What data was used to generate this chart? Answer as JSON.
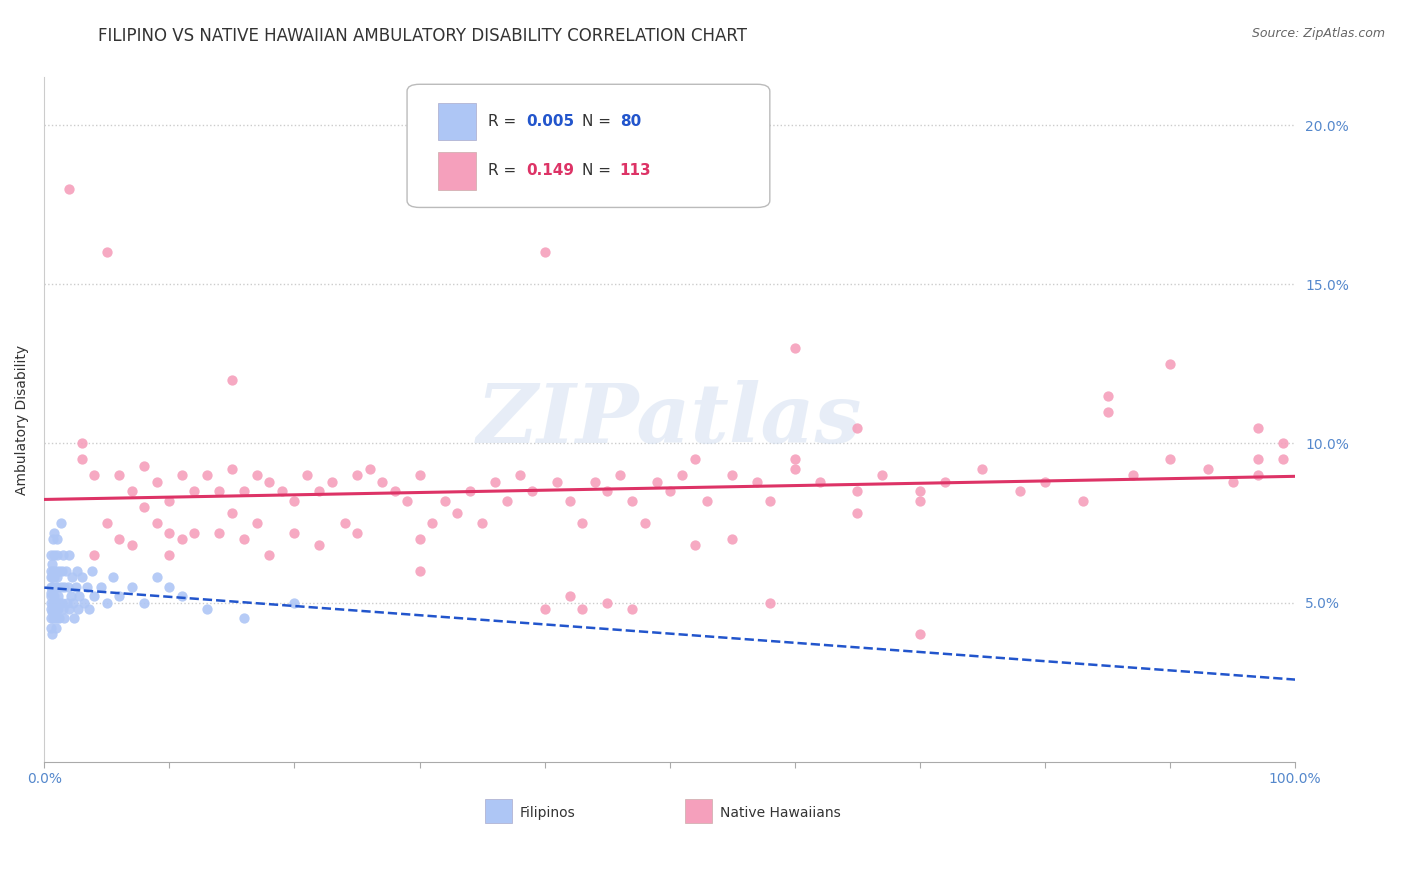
{
  "title": "FILIPINO VS NATIVE HAWAIIAN AMBULATORY DISABILITY CORRELATION CHART",
  "source": "Source: ZipAtlas.com",
  "ylabel": "Ambulatory Disability",
  "watermark": "ZIPatlas",
  "filipino_R": 0.005,
  "filipino_N": 80,
  "hawaiian_R": 0.149,
  "hawaiian_N": 113,
  "filipino_color": "#aec6f5",
  "hawaiian_color": "#f5a0bc",
  "filipino_line_color": "#2255cc",
  "hawaiian_line_color": "#dd3366",
  "background_color": "#ffffff",
  "grid_color": "#cccccc",
  "xlim": [
    0,
    1.0
  ],
  "ylim": [
    0,
    0.215
  ],
  "x_ticks": [
    0.0,
    1.0
  ],
  "x_tick_labels": [
    "0.0%",
    "100.0%"
  ],
  "y_ticks": [
    0.05,
    0.1,
    0.15,
    0.2
  ],
  "y_tick_labels": [
    "5.0%",
    "10.0%",
    "15.0%",
    "20.0%"
  ],
  "title_fontsize": 12,
  "axis_fontsize": 10,
  "tick_fontsize": 10,
  "legend_fontsize": 12,
  "filipino_points_x": [
    0.005,
    0.005,
    0.005,
    0.005,
    0.005,
    0.005,
    0.005,
    0.005,
    0.005,
    0.005,
    0.006,
    0.006,
    0.006,
    0.006,
    0.006,
    0.007,
    0.007,
    0.007,
    0.007,
    0.007,
    0.007,
    0.008,
    0.008,
    0.008,
    0.008,
    0.008,
    0.009,
    0.009,
    0.009,
    0.009,
    0.01,
    0.01,
    0.01,
    0.01,
    0.01,
    0.01,
    0.011,
    0.011,
    0.012,
    0.012,
    0.012,
    0.013,
    0.013,
    0.014,
    0.014,
    0.015,
    0.015,
    0.016,
    0.016,
    0.017,
    0.018,
    0.019,
    0.02,
    0.02,
    0.021,
    0.022,
    0.023,
    0.024,
    0.025,
    0.026,
    0.027,
    0.028,
    0.03,
    0.032,
    0.034,
    0.036,
    0.038,
    0.04,
    0.045,
    0.05,
    0.055,
    0.06,
    0.07,
    0.08,
    0.09,
    0.1,
    0.11,
    0.13,
    0.16,
    0.2
  ],
  "filipino_points_y": [
    0.05,
    0.048,
    0.052,
    0.055,
    0.045,
    0.06,
    0.042,
    0.058,
    0.065,
    0.053,
    0.047,
    0.055,
    0.062,
    0.04,
    0.058,
    0.05,
    0.045,
    0.06,
    0.055,
    0.048,
    0.07,
    0.052,
    0.058,
    0.045,
    0.065,
    0.072,
    0.048,
    0.055,
    0.06,
    0.042,
    0.05,
    0.058,
    0.045,
    0.065,
    0.055,
    0.07,
    0.052,
    0.048,
    0.06,
    0.05,
    0.045,
    0.055,
    0.075,
    0.05,
    0.06,
    0.048,
    0.065,
    0.055,
    0.045,
    0.06,
    0.05,
    0.055,
    0.048,
    0.065,
    0.052,
    0.058,
    0.05,
    0.045,
    0.055,
    0.06,
    0.048,
    0.052,
    0.058,
    0.05,
    0.055,
    0.048,
    0.06,
    0.052,
    0.055,
    0.05,
    0.058,
    0.052,
    0.055,
    0.05,
    0.058,
    0.055,
    0.052,
    0.048,
    0.045,
    0.05
  ],
  "hawaiian_points_x": [
    0.02,
    0.03,
    0.04,
    0.04,
    0.05,
    0.06,
    0.06,
    0.07,
    0.07,
    0.08,
    0.09,
    0.09,
    0.1,
    0.1,
    0.11,
    0.11,
    0.12,
    0.12,
    0.13,
    0.14,
    0.14,
    0.15,
    0.15,
    0.16,
    0.16,
    0.17,
    0.17,
    0.18,
    0.18,
    0.19,
    0.2,
    0.2,
    0.21,
    0.22,
    0.22,
    0.23,
    0.24,
    0.25,
    0.25,
    0.26,
    0.27,
    0.28,
    0.29,
    0.3,
    0.31,
    0.32,
    0.33,
    0.34,
    0.35,
    0.36,
    0.37,
    0.38,
    0.39,
    0.4,
    0.41,
    0.42,
    0.43,
    0.44,
    0.45,
    0.46,
    0.47,
    0.48,
    0.49,
    0.5,
    0.51,
    0.52,
    0.53,
    0.55,
    0.57,
    0.58,
    0.6,
    0.62,
    0.65,
    0.67,
    0.7,
    0.72,
    0.75,
    0.8,
    0.83,
    0.87,
    0.9,
    0.93,
    0.95,
    0.97,
    0.99,
    0.03,
    0.05,
    0.08,
    0.15,
    0.3,
    0.4,
    0.42,
    0.43,
    0.45,
    0.47,
    0.52,
    0.55,
    0.58,
    0.65,
    0.7,
    0.78,
    0.85,
    0.9,
    0.97,
    0.99,
    0.6,
    0.65,
    0.7,
    0.3,
    0.97,
    0.85,
    0.6,
    0.1
  ],
  "hawaiian_points_y": [
    0.18,
    0.1,
    0.09,
    0.065,
    0.075,
    0.09,
    0.07,
    0.085,
    0.068,
    0.08,
    0.088,
    0.075,
    0.082,
    0.072,
    0.09,
    0.07,
    0.085,
    0.072,
    0.09,
    0.085,
    0.072,
    0.092,
    0.078,
    0.085,
    0.07,
    0.09,
    0.075,
    0.088,
    0.065,
    0.085,
    0.082,
    0.072,
    0.09,
    0.085,
    0.068,
    0.088,
    0.075,
    0.09,
    0.072,
    0.092,
    0.088,
    0.085,
    0.082,
    0.09,
    0.075,
    0.082,
    0.078,
    0.085,
    0.075,
    0.088,
    0.082,
    0.09,
    0.085,
    0.048,
    0.088,
    0.082,
    0.075,
    0.088,
    0.085,
    0.09,
    0.082,
    0.075,
    0.088,
    0.085,
    0.09,
    0.095,
    0.082,
    0.09,
    0.088,
    0.082,
    0.092,
    0.088,
    0.085,
    0.09,
    0.082,
    0.088,
    0.092,
    0.088,
    0.082,
    0.09,
    0.095,
    0.092,
    0.088,
    0.09,
    0.095,
    0.095,
    0.16,
    0.093,
    0.12,
    0.07,
    0.16,
    0.052,
    0.048,
    0.05,
    0.048,
    0.068,
    0.07,
    0.05,
    0.078,
    0.04,
    0.085,
    0.115,
    0.125,
    0.105,
    0.1,
    0.13,
    0.105,
    0.085,
    0.06,
    0.095,
    0.11,
    0.095,
    0.065
  ]
}
